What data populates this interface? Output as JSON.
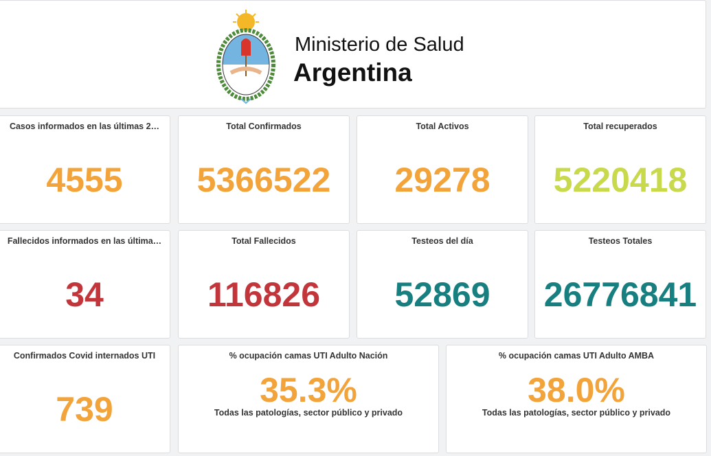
{
  "header": {
    "title": "Ministerio de Salud",
    "subtitle": "Argentina"
  },
  "cards": [
    {
      "title": "Casos informados en las últimas 2…",
      "value": "4555",
      "color": "#f2a43a"
    },
    {
      "title": "Total Confirmados",
      "value": "5366522",
      "color": "#f2a43a"
    },
    {
      "title": "Total Activos",
      "value": "29278",
      "color": "#f2a43a"
    },
    {
      "title": "Total recuperados",
      "value": "5220418",
      "color": "#c8d94c"
    },
    {
      "title": "Fallecidos informados en las última…",
      "value": "34",
      "color": "#c1353b"
    },
    {
      "title": "Total Fallecidos",
      "value": "116826",
      "color": "#c1353b"
    },
    {
      "title": "Testeos del día",
      "value": "52869",
      "color": "#187f80"
    },
    {
      "title": "Testeos Totales",
      "value": "26776841",
      "color": "#187f80"
    },
    {
      "title": "Confirmados Covid internados UTI",
      "value": "739",
      "color": "#f2a43a"
    },
    {
      "title": "% ocupación camas UTI Adulto Nación",
      "value": "35.3%",
      "color": "#f2a43a",
      "note": "Todas las patologías, sector público y privado"
    },
    {
      "title": "% ocupación camas UTI Adulto AMBA",
      "value": "38.0%",
      "color": "#f2a43a",
      "note": "Todas las patologías, sector público y privado"
    }
  ]
}
